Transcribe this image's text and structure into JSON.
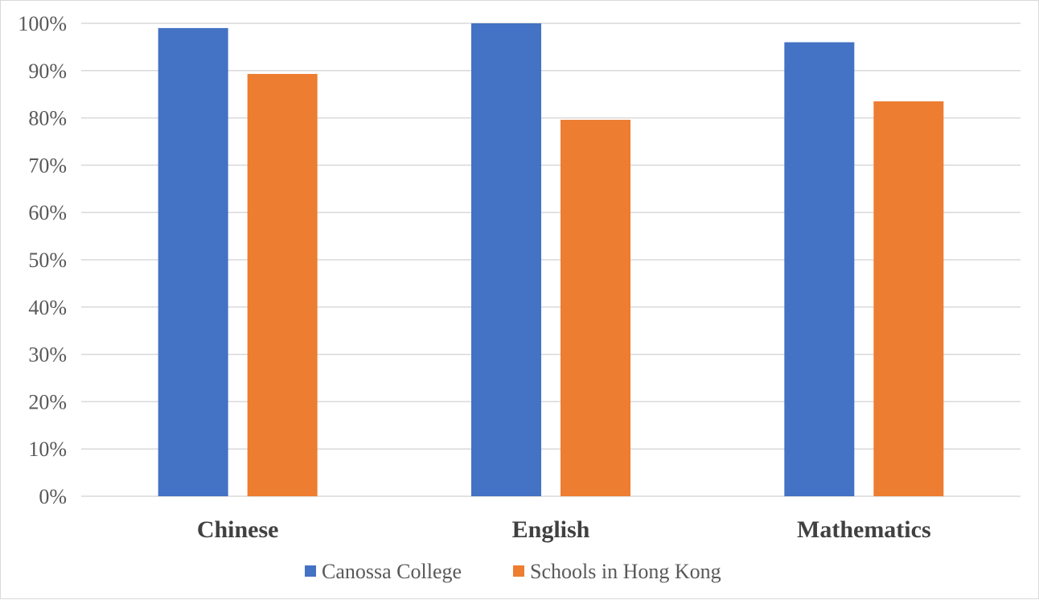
{
  "chart_data": {
    "type": "bar",
    "categories": [
      "Chinese",
      "English",
      "Mathematics"
    ],
    "series": [
      {
        "name": "Canossa College",
        "values": [
          99,
          100,
          96
        ],
        "color": "#4472C4"
      },
      {
        "name": "Schools in Hong Kong",
        "values": [
          89.3,
          79.6,
          83.5
        ],
        "color": "#ED7D31"
      }
    ],
    "ylim": [
      0,
      100
    ],
    "yticks": [
      0,
      10,
      20,
      30,
      40,
      50,
      60,
      70,
      80,
      90,
      100
    ],
    "ytick_suffix": "%",
    "grid": true,
    "legend": "bottom",
    "gridline_color": "#d9d9d9"
  }
}
